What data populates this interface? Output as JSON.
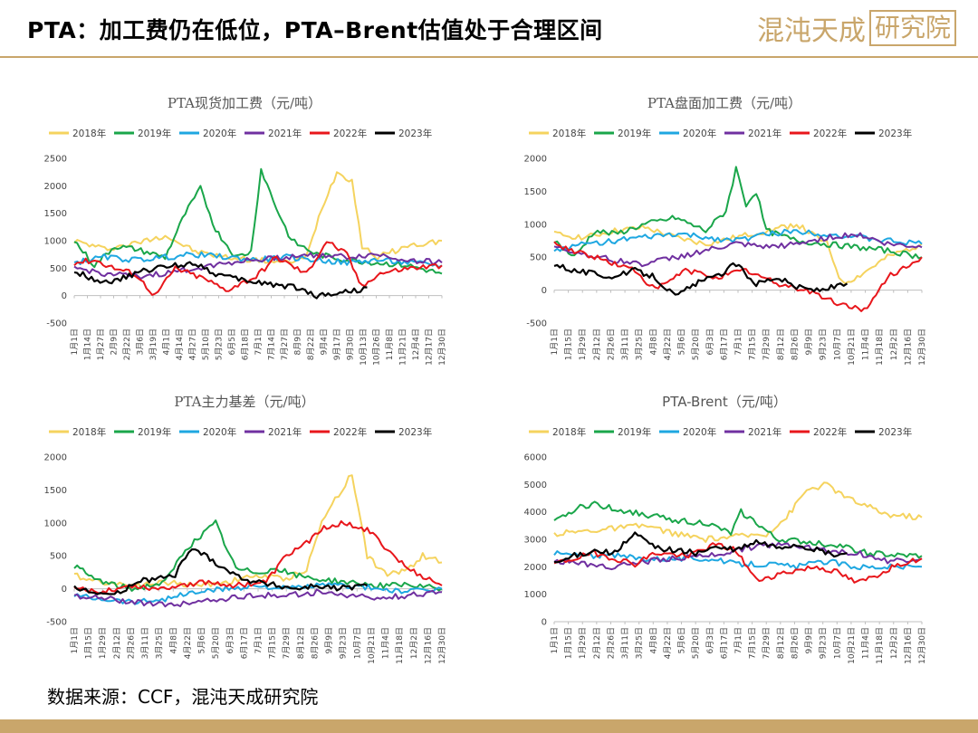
{
  "header": {
    "title": "PTA：加工费仍在低位，PTA–Brent估值处于合理区间",
    "logo_text": "混沌天成",
    "logo_box_text": "研究院"
  },
  "footer": {
    "source": "数据来源：CCF，混沌天成研究院"
  },
  "colors": {
    "2018": "#f5d35e",
    "2019": "#1aa64a",
    "2020": "#1ea7e1",
    "2021": "#7030a0",
    "2022": "#e8161b",
    "2023": "#000000",
    "accent": "#c9a66b"
  },
  "chart_data": [
    {
      "id": "spot",
      "type": "line",
      "title": "PTA现货加工费（元/吨）",
      "title_font": "serif",
      "ylim": [
        -500,
        2500
      ],
      "yticks": [
        -500,
        0,
        500,
        1000,
        1500,
        2000,
        2500
      ],
      "xticks": [
        "1月1日",
        "1月14日",
        "1月27日",
        "2月9日",
        "2月22日",
        "3月6日",
        "3月19日",
        "4月1日",
        "4月14日",
        "4月27日",
        "5月10日",
        "5月23日",
        "6月5日",
        "6月18日",
        "7月1日",
        "7月14日",
        "7月27日",
        "8月9日",
        "8月22日",
        "9月4日",
        "9月17日",
        "9月30日",
        "10月13日",
        "10月26日",
        "11月8日",
        "11月21日",
        "12月4日",
        "12月17日",
        "12月30日"
      ],
      "legend": [
        "2018年",
        "2019年",
        "2020年",
        "2021年",
        "2022年",
        "2023年"
      ],
      "series": [
        {
          "name": "2018年",
          "key": "2018",
          "x": [
            0,
            30,
            60,
            90,
            120,
            150,
            180,
            210,
            230,
            245,
            260,
            275,
            285,
            300,
            330,
            364
          ],
          "y": [
            1000,
            850,
            950,
            1100,
            800,
            700,
            650,
            600,
            700,
            1600,
            2250,
            2100,
            900,
            700,
            900,
            1000
          ]
        },
        {
          "name": "2019年",
          "key": "2019",
          "x": [
            0,
            20,
            40,
            60,
            90,
            110,
            125,
            140,
            160,
            175,
            185,
            200,
            215,
            240,
            270,
            300,
            330,
            364
          ],
          "y": [
            1000,
            550,
            900,
            850,
            700,
            1500,
            1950,
            1200,
            700,
            800,
            2300,
            1600,
            1000,
            750,
            650,
            600,
            550,
            400
          ]
        },
        {
          "name": "2020年",
          "key": "2020",
          "x": [
            0,
            30,
            60,
            90,
            120,
            150,
            180,
            210,
            240,
            270,
            300,
            330,
            364
          ],
          "y": [
            600,
            700,
            650,
            700,
            750,
            700,
            650,
            700,
            650,
            600,
            650,
            600,
            550
          ]
        },
        {
          "name": "2021年",
          "key": "2021",
          "x": [
            0,
            30,
            60,
            90,
            120,
            150,
            180,
            210,
            240,
            270,
            300,
            330,
            364
          ],
          "y": [
            500,
            400,
            350,
            400,
            500,
            600,
            650,
            700,
            750,
            700,
            750,
            650,
            600
          ]
        },
        {
          "name": "2022年",
          "key": "2022",
          "x": [
            0,
            20,
            40,
            60,
            80,
            100,
            130,
            150,
            180,
            200,
            230,
            250,
            270,
            285,
            300,
            330,
            364
          ],
          "y": [
            600,
            650,
            500,
            400,
            0,
            500,
            300,
            100,
            350,
            700,
            400,
            1000,
            750,
            150,
            400,
            500,
            550
          ]
        },
        {
          "name": "2023年",
          "key": "2023",
          "x": [
            0,
            20,
            40,
            60,
            80,
            100,
            120,
            140,
            160,
            180,
            200,
            220,
            240,
            260,
            280,
            290
          ],
          "y": [
            450,
            300,
            250,
            400,
            500,
            550,
            600,
            400,
            300,
            250,
            200,
            150,
            0,
            50,
            100,
            150
          ]
        }
      ]
    },
    {
      "id": "futures",
      "type": "line",
      "title": "PTA盘面加工费（元/吨）",
      "title_font": "serif",
      "ylim": [
        -500,
        2000
      ],
      "yticks": [
        -500,
        0,
        500,
        1000,
        1500,
        2000
      ],
      "xticks": [
        "1月1日",
        "1月15日",
        "1月29日",
        "2月12日",
        "2月26日",
        "3月11日",
        "3月25日",
        "4月8日",
        "4月22日",
        "5月6日",
        "5月20日",
        "6月3日",
        "6月17日",
        "7月1日",
        "7月15日",
        "7月29日",
        "8月12日",
        "8月26日",
        "9月9日",
        "9月23日",
        "10月7日",
        "10月21日",
        "11月4日",
        "11月18日",
        "12月2日",
        "12月16日",
        "12月30日"
      ],
      "legend": [
        "2018年",
        "2019年",
        "2020年",
        "2021年",
        "2022年",
        "2023年"
      ],
      "series": [
        {
          "name": "2018年",
          "key": "2018",
          "x": [
            0,
            30,
            60,
            90,
            120,
            150,
            180,
            210,
            240,
            270,
            285,
            300,
            330,
            364
          ],
          "y": [
            850,
            800,
            900,
            950,
            800,
            700,
            800,
            900,
            1000,
            700,
            100,
            200,
            500,
            700
          ]
        },
        {
          "name": "2019年",
          "key": "2019",
          "x": [
            0,
            20,
            40,
            60,
            90,
            120,
            150,
            170,
            180,
            190,
            200,
            210,
            240,
            270,
            300,
            330,
            364
          ],
          "y": [
            750,
            500,
            900,
            850,
            1000,
            1100,
            900,
            1200,
            1850,
            1300,
            1500,
            900,
            750,
            700,
            650,
            600,
            500
          ]
        },
        {
          "name": "2020年",
          "key": "2020",
          "x": [
            0,
            30,
            60,
            90,
            120,
            150,
            180,
            210,
            240,
            270,
            300,
            330,
            364
          ],
          "y": [
            600,
            700,
            750,
            800,
            850,
            800,
            750,
            850,
            900,
            850,
            800,
            750,
            700
          ]
        },
        {
          "name": "2021年",
          "key": "2021",
          "x": [
            0,
            30,
            60,
            90,
            120,
            150,
            180,
            210,
            240,
            270,
            300,
            330,
            364
          ],
          "y": [
            650,
            550,
            450,
            400,
            500,
            600,
            700,
            650,
            700,
            800,
            850,
            700,
            650
          ]
        },
        {
          "name": "2022年",
          "key": "2022",
          "x": [
            0,
            20,
            40,
            60,
            80,
            100,
            130,
            160,
            190,
            220,
            250,
            280,
            310,
            330,
            364
          ],
          "y": [
            700,
            600,
            500,
            400,
            300,
            0,
            300,
            200,
            300,
            100,
            0,
            -200,
            -300,
            200,
            500
          ]
        },
        {
          "name": "2023年",
          "key": "2023",
          "x": [
            0,
            20,
            40,
            60,
            80,
            100,
            120,
            140,
            160,
            180,
            200,
            220,
            240,
            260,
            280,
            290
          ],
          "y": [
            400,
            300,
            250,
            200,
            300,
            200,
            -100,
            100,
            200,
            400,
            100,
            200,
            50,
            0,
            50,
            100
          ]
        }
      ]
    },
    {
      "id": "basis",
      "type": "line",
      "title": "PTA主力基差（元/吨）",
      "title_font": "serif",
      "ylim": [
        -500,
        2000
      ],
      "yticks": [
        -500,
        0,
        500,
        1000,
        1500,
        2000
      ],
      "xticks": [
        "1月1日",
        "1月15日",
        "1月29日",
        "2月12日",
        "2月26日",
        "3月11日",
        "3月25日",
        "4月8日",
        "4月22日",
        "5月6日",
        "5月20日",
        "6月3日",
        "6月17日",
        "7月1日",
        "7月15日",
        "7月29日",
        "8月12日",
        "8月26日",
        "9月9日",
        "9月23日",
        "10月7日",
        "10月21日",
        "11月4日",
        "11月18日",
        "12月2日",
        "12月16日",
        "12月30日"
      ],
      "legend": [
        "2018年",
        "2019年",
        "2020年",
        "2021年",
        "2022年",
        "2023年"
      ],
      "series": [
        {
          "name": "2018年",
          "key": "2018",
          "x": [
            0,
            30,
            60,
            90,
            120,
            150,
            180,
            210,
            230,
            245,
            255,
            265,
            275,
            290,
            310,
            330,
            345,
            364
          ],
          "y": [
            200,
            100,
            50,
            100,
            50,
            100,
            200,
            150,
            300,
            1000,
            1300,
            1500,
            1750,
            500,
            200,
            300,
            500,
            400
          ]
        },
        {
          "name": "2019年",
          "key": "2019",
          "x": [
            0,
            20,
            40,
            60,
            90,
            110,
            125,
            140,
            160,
            180,
            200,
            220,
            240,
            270,
            300,
            330,
            364
          ],
          "y": [
            350,
            150,
            50,
            0,
            100,
            600,
            800,
            1000,
            300,
            250,
            300,
            200,
            150,
            100,
            50,
            50,
            0
          ]
        },
        {
          "name": "2020年",
          "key": "2020",
          "x": [
            0,
            30,
            60,
            90,
            120,
            150,
            180,
            210,
            240,
            270,
            300,
            330,
            364
          ],
          "y": [
            -100,
            -150,
            -200,
            -150,
            -50,
            0,
            50,
            0,
            50,
            50,
            0,
            -50,
            0
          ]
        },
        {
          "name": "2021年",
          "key": "2021",
          "x": [
            0,
            30,
            60,
            90,
            120,
            150,
            180,
            210,
            240,
            270,
            300,
            330,
            364
          ],
          "y": [
            -100,
            -150,
            -200,
            -250,
            -200,
            -150,
            -100,
            -100,
            -50,
            -100,
            -150,
            -100,
            -50
          ]
        },
        {
          "name": "2022年",
          "key": "2022",
          "x": [
            0,
            20,
            40,
            60,
            80,
            100,
            130,
            160,
            190,
            210,
            230,
            250,
            270,
            290,
            310,
            330,
            364
          ],
          "y": [
            0,
            -50,
            0,
            50,
            0,
            50,
            100,
            50,
            100,
            500,
            700,
            950,
            1000,
            900,
            600,
            300,
            50
          ]
        },
        {
          "name": "2023年",
          "key": "2023",
          "x": [
            0,
            20,
            40,
            60,
            80,
            100,
            110,
            120,
            140,
            160,
            180,
            200,
            220,
            240,
            260,
            290
          ],
          "y": [
            0,
            -50,
            -100,
            100,
            150,
            200,
            500,
            600,
            400,
            200,
            100,
            50,
            0,
            50,
            0,
            50
          ]
        }
      ]
    },
    {
      "id": "brent",
      "type": "line",
      "title": "PTA-Brent（元/吨）",
      "title_font": "sans",
      "ylim": [
        0,
        6000
      ],
      "yticks": [
        0,
        1000,
        2000,
        3000,
        4000,
        5000,
        6000
      ],
      "xticks": [
        "1月1日",
        "1月15日",
        "1月29日",
        "2月12日",
        "2月26日",
        "3月11日",
        "3月25日",
        "4月8日",
        "4月22日",
        "5月6日",
        "5月20日",
        "6月3日",
        "6月17日",
        "7月1日",
        "7月15日",
        "7月29日",
        "8月12日",
        "8月26日",
        "9月9日",
        "9月23日",
        "10月7日",
        "10月21日",
        "11月4日",
        "11月18日",
        "12月2日",
        "12月16日",
        "12月30日"
      ],
      "legend": [
        "2018年",
        "2019年",
        "2020年",
        "2021年",
        "2022年",
        "2023年"
      ],
      "series": [
        {
          "name": "2018年",
          "key": "2018",
          "x": [
            0,
            30,
            60,
            90,
            120,
            150,
            180,
            210,
            230,
            250,
            270,
            290,
            310,
            330,
            364
          ],
          "y": [
            3200,
            3300,
            3400,
            3500,
            3200,
            3000,
            3100,
            3200,
            3800,
            4800,
            5000,
            4500,
            4200,
            3900,
            3800
          ]
        },
        {
          "name": "2019年",
          "key": "2019",
          "x": [
            0,
            20,
            40,
            60,
            90,
            120,
            150,
            175,
            185,
            200,
            220,
            250,
            280,
            310,
            340,
            364
          ],
          "y": [
            3600,
            4100,
            4300,
            4100,
            3900,
            3700,
            3600,
            3200,
            4000,
            3600,
            3000,
            2900,
            2800,
            2500,
            2400,
            2400
          ]
        },
        {
          "name": "2020年",
          "key": "2020",
          "x": [
            0,
            30,
            60,
            90,
            120,
            150,
            180,
            210,
            240,
            270,
            300,
            330,
            364
          ],
          "y": [
            2500,
            2400,
            2400,
            2300,
            2300,
            2300,
            2100,
            2100,
            2000,
            2200,
            2000,
            2000,
            2000
          ]
        },
        {
          "name": "2021年",
          "key": "2021",
          "x": [
            0,
            30,
            60,
            90,
            120,
            150,
            180,
            210,
            240,
            270,
            300,
            330,
            364
          ],
          "y": [
            2200,
            2100,
            2000,
            2200,
            2300,
            2400,
            2600,
            2800,
            2800,
            2600,
            2500,
            2200,
            2300
          ]
        },
        {
          "name": "2022年",
          "key": "2022",
          "x": [
            0,
            20,
            40,
            60,
            80,
            100,
            130,
            160,
            180,
            200,
            230,
            260,
            280,
            300,
            320,
            340,
            364
          ],
          "y": [
            2100,
            2300,
            2500,
            2300,
            2100,
            2500,
            2400,
            2800,
            2600,
            1500,
            1800,
            2000,
            1800,
            1400,
            1700,
            2100,
            2300
          ]
        },
        {
          "name": "2023年",
          "key": "2023",
          "x": [
            0,
            20,
            40,
            60,
            80,
            100,
            120,
            140,
            160,
            180,
            200,
            220,
            240,
            260,
            280,
            290
          ],
          "y": [
            2100,
            2400,
            2600,
            2500,
            3200,
            2700,
            2600,
            2500,
            2700,
            2600,
            2900,
            2700,
            2800,
            2600,
            2400,
            2500
          ]
        }
      ]
    }
  ]
}
